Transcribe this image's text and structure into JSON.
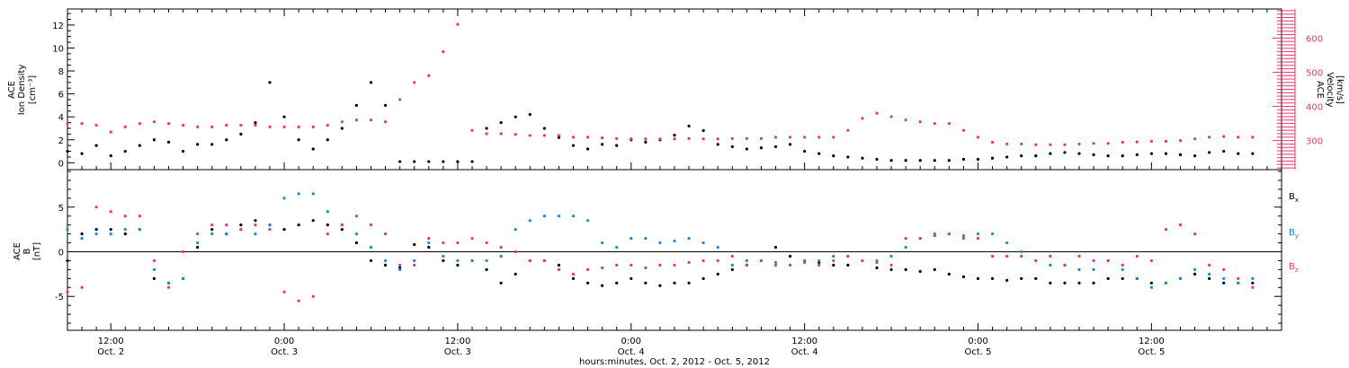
{
  "colors": {
    "black": "#000000",
    "pink": "#e8386a",
    "blue": "#1a86e0"
  },
  "chart_data": [
    {
      "type": "scatter",
      "panel": "top",
      "x_range_hours": [
        0,
        84
      ],
      "ylim_left": [
        -0.6,
        13.4
      ],
      "ylim_right": [
        215,
        685
      ],
      "ylabel_left": [
        "ACE",
        "Ion Density",
        "[cm⁻³]"
      ],
      "ylabel_right": [
        "ACE",
        "Velocity",
        "[km/s]"
      ],
      "yticks_left": [
        0,
        2,
        4,
        6,
        8,
        10,
        12
      ],
      "yticks_right": [
        300,
        400,
        500,
        600
      ],
      "series": [
        {
          "axis": "left",
          "color": "#000000",
          "x": [
            0,
            1,
            2,
            3,
            4,
            5,
            6,
            7,
            8,
            9,
            10,
            11,
            12,
            13,
            14,
            15,
            16,
            17,
            18,
            19,
            20,
            21,
            22,
            23,
            24,
            25,
            26,
            27,
            28,
            29,
            30,
            31,
            32,
            33,
            34,
            35,
            36,
            37,
            38,
            39,
            40,
            41,
            42,
            43,
            44,
            45,
            46,
            47,
            48,
            49,
            50,
            51,
            52,
            53,
            54,
            55,
            56,
            57,
            58,
            59,
            60,
            61,
            62,
            63,
            64,
            65,
            66,
            67,
            68,
            69,
            70,
            71,
            72,
            73,
            74,
            75,
            76,
            77,
            78,
            79,
            80,
            81,
            82
          ],
          "y": [
            1.0,
            0.8,
            1.5,
            0.6,
            1.0,
            1.5,
            2.0,
            1.8,
            1.0,
            1.6,
            1.6,
            2.0,
            2.5,
            3.5,
            7.0,
            4.0,
            2.0,
            1.2,
            2.0,
            3.0,
            5.0,
            7.0,
            5.0,
            0.1,
            0.1,
            0.1,
            0.1,
            0.1,
            0.1,
            3.0,
            3.5,
            4.0,
            4.2,
            3.0,
            2.2,
            1.5,
            1.2,
            1.6,
            1.5,
            2.0,
            1.8,
            2.0,
            2.4,
            3.2,
            2.8,
            1.6,
            1.4,
            1.2,
            1.3,
            1.4,
            1.6,
            1.0,
            0.8,
            0.6,
            0.5,
            0.4,
            0.3,
            0.2,
            0.2,
            0.2,
            0.2,
            0.2,
            0.3,
            0.3,
            0.4,
            0.5,
            0.6,
            0.6,
            0.8,
            0.9,
            0.8,
            0.7,
            0.6,
            0.6,
            0.7,
            0.8,
            0.8,
            0.7,
            0.6,
            0.9,
            1.0,
            0.8,
            0.8
          ]
        },
        {
          "axis": "right",
          "color": "#e8386a",
          "x": [
            0,
            1,
            2,
            3,
            4,
            5,
            6,
            7,
            8,
            9,
            10,
            11,
            12,
            13,
            14,
            15,
            16,
            17,
            18,
            19,
            20,
            21,
            22,
            23,
            24,
            25,
            26,
            27,
            28,
            29,
            30,
            31,
            32,
            33,
            34,
            35,
            36,
            37,
            38,
            39,
            40,
            41,
            42,
            43,
            44,
            45,
            46,
            47,
            48,
            49,
            50,
            51,
            52,
            53,
            54,
            55,
            56,
            57,
            58,
            59,
            60,
            61,
            62,
            63,
            64,
            65,
            66,
            67,
            68,
            69,
            70,
            71,
            72,
            73,
            74,
            75,
            76,
            77,
            78,
            79,
            80,
            81,
            82
          ],
          "y": [
            350,
            350,
            345,
            325,
            340,
            350,
            355,
            350,
            345,
            340,
            340,
            345,
            345,
            345,
            340,
            340,
            340,
            340,
            345,
            355,
            360,
            360,
            355,
            420,
            470,
            490,
            560,
            640,
            330,
            320,
            320,
            318,
            315,
            315,
            315,
            310,
            310,
            308,
            306,
            305,
            305,
            305,
            305,
            306,
            305,
            305,
            306,
            306,
            306,
            310,
            310,
            310,
            310,
            310,
            330,
            365,
            380,
            370,
            360,
            355,
            350,
            350,
            330,
            310,
            295,
            290,
            290,
            288,
            288,
            288,
            290,
            292,
            292,
            295,
            296,
            298,
            298,
            300,
            305,
            310,
            312,
            310,
            310
          ]
        }
      ]
    },
    {
      "type": "scatter",
      "panel": "bottom",
      "x_range_hours": [
        0,
        84
      ],
      "ylim": [
        -8.8,
        9.2
      ],
      "ylabel": [
        "ACE",
        "B",
        "[nT]"
      ],
      "yticks": [
        -5,
        0,
        5
      ],
      "legend": [
        "B",
        "B",
        "B"
      ],
      "legend_subscripts": [
        "x",
        "y",
        "z"
      ],
      "legend_placement": "right",
      "xlabel": "hours:minutes, Oct.  2, 2012 - Oct.  5, 2012",
      "xticks": [
        {
          "h": 3,
          "time": "12:00",
          "date": "Oct. 2"
        },
        {
          "h": 15,
          "time": "0:00",
          "date": "Oct. 3"
        },
        {
          "h": 27,
          "time": "12:00",
          "date": "Oct. 3"
        },
        {
          "h": 39,
          "time": "0:00",
          "date": "Oct. 4"
        },
        {
          "h": 51,
          "time": "12:00",
          "date": "Oct. 4"
        },
        {
          "h": 63,
          "time": "0:00",
          "date": "Oct. 5"
        },
        {
          "h": 75,
          "time": "12:00",
          "date": "Oct. 5"
        }
      ],
      "series": [
        {
          "name": "Bx",
          "color": "#000000",
          "x": [
            0,
            1,
            2,
            3,
            4,
            5,
            6,
            7,
            8,
            9,
            10,
            11,
            12,
            13,
            14,
            15,
            16,
            17,
            18,
            19,
            20,
            21,
            22,
            23,
            24,
            25,
            26,
            27,
            28,
            29,
            30,
            31,
            32,
            33,
            34,
            35,
            36,
            37,
            38,
            39,
            40,
            41,
            42,
            43,
            44,
            45,
            46,
            47,
            48,
            49,
            50,
            51,
            52,
            53,
            54,
            55,
            56,
            57,
            58,
            59,
            60,
            61,
            62,
            63,
            64,
            65,
            66,
            67,
            68,
            69,
            70,
            71,
            72,
            73,
            74,
            75,
            76,
            77,
            78,
            79,
            80,
            81,
            82
          ],
          "y": [
            -1.0,
            2.0,
            2.5,
            2.5,
            2.0,
            2.5,
            -3.0,
            -3.5,
            -3.0,
            0.5,
            2.5,
            2.0,
            3.0,
            3.5,
            3.0,
            2.5,
            3.0,
            3.5,
            3.0,
            2.5,
            1.0,
            -1.0,
            -1.5,
            -1.8,
            0.8,
            0.5,
            -1.0,
            -1.5,
            -1.0,
            -2.0,
            -3.5,
            -2.5,
            -1.0,
            -1.0,
            -1.5,
            -3.0,
            -3.5,
            -3.8,
            -3.5,
            -3.0,
            -3.5,
            -3.8,
            -3.5,
            -3.5,
            -3.0,
            -2.5,
            -2.0,
            -1.5,
            -1.0,
            0.5,
            -0.5,
            -1.0,
            -1.2,
            -1.5,
            -1.5,
            -1.0,
            -1.8,
            -2.0,
            -2.0,
            -2.2,
            -2.0,
            -2.5,
            -2.8,
            -3.0,
            -3.0,
            -3.2,
            -3.0,
            -3.0,
            -3.5,
            -3.5,
            -3.5,
            -3.5,
            -3.0,
            -3.0,
            -3.0,
            -3.5,
            -3.5,
            -3.0,
            -2.5,
            -3.0,
            -3.5,
            -3.5,
            -3.5
          ]
        },
        {
          "name": "By",
          "color": "#1a86e0",
          "x": [
            0,
            1,
            2,
            3,
            4,
            5,
            6,
            7,
            8,
            9,
            10,
            11,
            12,
            13,
            14,
            15,
            16,
            17,
            18,
            19,
            20,
            21,
            22,
            23,
            24,
            25,
            26,
            27,
            28,
            29,
            30,
            31,
            32,
            33,
            34,
            35,
            36,
            37,
            38,
            39,
            40,
            41,
            42,
            43,
            44,
            45,
            46,
            47,
            48,
            49,
            50,
            51,
            52,
            53,
            54,
            55,
            56,
            57,
            58,
            59,
            60,
            61,
            62,
            63,
            64,
            65,
            66,
            67,
            68,
            69,
            70,
            71,
            72,
            73,
            74,
            75,
            76,
            77,
            78,
            79,
            80,
            81,
            82
          ],
          "y": [
            2.5,
            1.5,
            2.0,
            2.0,
            2.5,
            2.5,
            -2.0,
            -3.5,
            -3.0,
            1.0,
            2.0,
            2.0,
            2.5,
            2.0,
            3.0,
            6.0,
            6.5,
            6.5,
            4.5,
            3.0,
            2.0,
            0.5,
            -1.0,
            -2.0,
            -1.0,
            1.0,
            -0.5,
            -1.0,
            -1.0,
            -1.0,
            -0.5,
            2.5,
            3.5,
            4.0,
            4.0,
            4.0,
            3.5,
            1.0,
            0.5,
            1.5,
            1.5,
            1.0,
            1.2,
            1.5,
            1.0,
            0.5,
            -1.5,
            -1.0,
            -1.0,
            -1.2,
            -1.5,
            -1.2,
            -1.0,
            -0.5,
            -0.5,
            -1.0,
            -1.2,
            -0.5,
            0.5,
            1.5,
            2.0,
            2.0,
            1.5,
            2.0,
            2.0,
            1.0,
            0.0,
            -1.0,
            -1.5,
            -1.5,
            -2.0,
            -2.0,
            -1.0,
            -2.0,
            -3.0,
            -4.0,
            -3.5,
            -3.0,
            -2.0,
            -2.5,
            -3.0,
            -3.5,
            -3.0
          ]
        },
        {
          "name": "Bz",
          "color": "#e8386a",
          "x": [
            0,
            1,
            2,
            3,
            4,
            5,
            6,
            7,
            8,
            9,
            10,
            11,
            12,
            13,
            14,
            15,
            16,
            17,
            18,
            19,
            20,
            21,
            22,
            23,
            24,
            25,
            26,
            27,
            28,
            29,
            30,
            31,
            32,
            33,
            34,
            35,
            36,
            37,
            38,
            39,
            40,
            41,
            42,
            43,
            44,
            45,
            46,
            47,
            48,
            49,
            50,
            51,
            52,
            53,
            54,
            55,
            56,
            57,
            58,
            59,
            60,
            61,
            62,
            63,
            64,
            65,
            66,
            67,
            68,
            69,
            70,
            71,
            72,
            73,
            74,
            75,
            76,
            77,
            78,
            79,
            80,
            81,
            82
          ],
          "y": [
            -4.5,
            -4.0,
            5.0,
            4.5,
            4.0,
            4.0,
            -1.0,
            -4.0,
            0.0,
            2.0,
            3.0,
            3.0,
            2.5,
            3.0,
            2.5,
            -4.5,
            -5.5,
            -5.0,
            2.0,
            3.0,
            4.0,
            3.0,
            2.0,
            -1.5,
            -1.5,
            1.5,
            1.0,
            1.0,
            1.5,
            1.0,
            0.5,
            0.0,
            -1.0,
            -1.0,
            -2.0,
            -2.5,
            -2.0,
            -1.8,
            -1.5,
            -1.5,
            -1.8,
            -1.5,
            -1.5,
            -1.2,
            -1.0,
            -1.0,
            -0.5,
            -1.5,
            -1.0,
            -1.5,
            -1.5,
            -1.0,
            -1.5,
            -1.0,
            -0.5,
            -1.0,
            -1.0,
            -1.5,
            1.5,
            1.5,
            1.8,
            2.0,
            1.8,
            1.5,
            -0.5,
            -0.5,
            -0.5,
            -1.0,
            -0.5,
            -1.5,
            -0.5,
            -1.0,
            -1.0,
            -1.5,
            -0.5,
            -1.0,
            2.5,
            3.0,
            2.0,
            -1.5,
            -2.0,
            -3.0,
            -4.0
          ]
        }
      ]
    }
  ]
}
